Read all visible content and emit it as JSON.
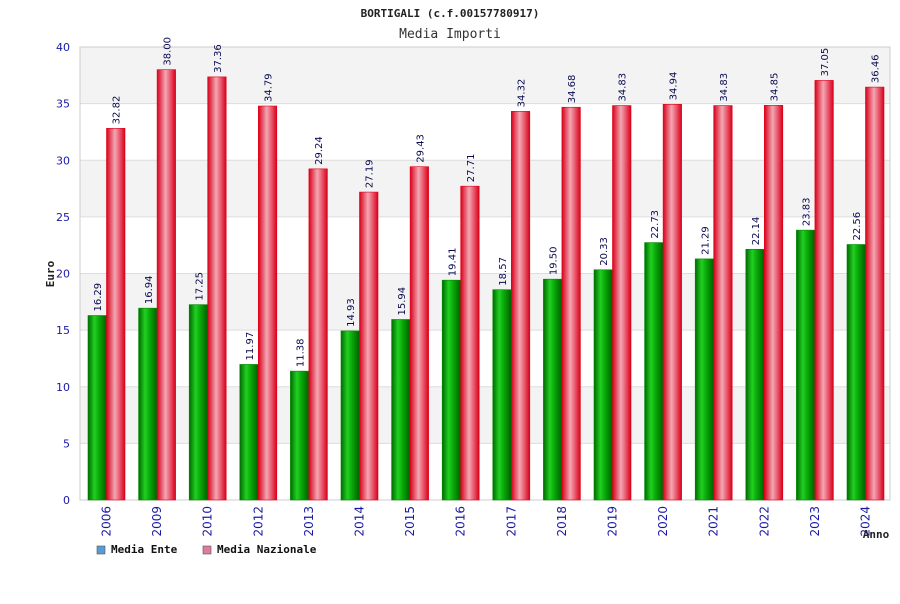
{
  "chart_data": {
    "type": "bar",
    "title": "BORTIGALI (c.f.00157780917)",
    "subtitle": "Media Importi",
    "xlabel": "Anno",
    "ylabel": "Euro",
    "ylim": [
      0,
      40
    ],
    "yticks": [
      0,
      5,
      10,
      15,
      20,
      25,
      30,
      35,
      40
    ],
    "categories": [
      "2006",
      "2009",
      "2010",
      "2012",
      "2013",
      "2014",
      "2015",
      "2016",
      "2017",
      "2018",
      "2019",
      "2020",
      "2021",
      "2022",
      "2023",
      "2024"
    ],
    "series": [
      {
        "name": "Media Ente",
        "color": "#00aa00",
        "legend_color": "#5b9bd5",
        "values": [
          16.29,
          16.94,
          17.25,
          11.97,
          11.38,
          14.93,
          15.94,
          19.41,
          18.57,
          19.5,
          20.33,
          22.73,
          21.29,
          22.14,
          23.83,
          22.56
        ],
        "labels": [
          "16.29",
          "16.94",
          "17.25",
          "11.97",
          "11.38",
          "14.93",
          "15.94",
          "19.41",
          "18.57",
          "19.50",
          "20.33",
          "22.73",
          "21.29",
          "22.14",
          "23.83",
          "22.56"
        ]
      },
      {
        "name": "Media Nazionale",
        "color": "#ee1122",
        "legend_color": "#e07aa0",
        "values": [
          32.82,
          38.0,
          37.36,
          34.79,
          29.24,
          27.19,
          29.43,
          27.71,
          34.32,
          34.68,
          34.83,
          34.94,
          34.83,
          34.85,
          37.05,
          36.46
        ],
        "labels": [
          "32.82",
          "38.00",
          "37.36",
          "34.79",
          "29.24",
          "27.19",
          "29.43",
          "27.71",
          "34.32",
          "34.68",
          "34.83",
          "34.94",
          "34.83",
          "34.85",
          "37.05",
          "36.46"
        ]
      }
    ],
    "grid": true,
    "legend_position": "bottom-left"
  }
}
